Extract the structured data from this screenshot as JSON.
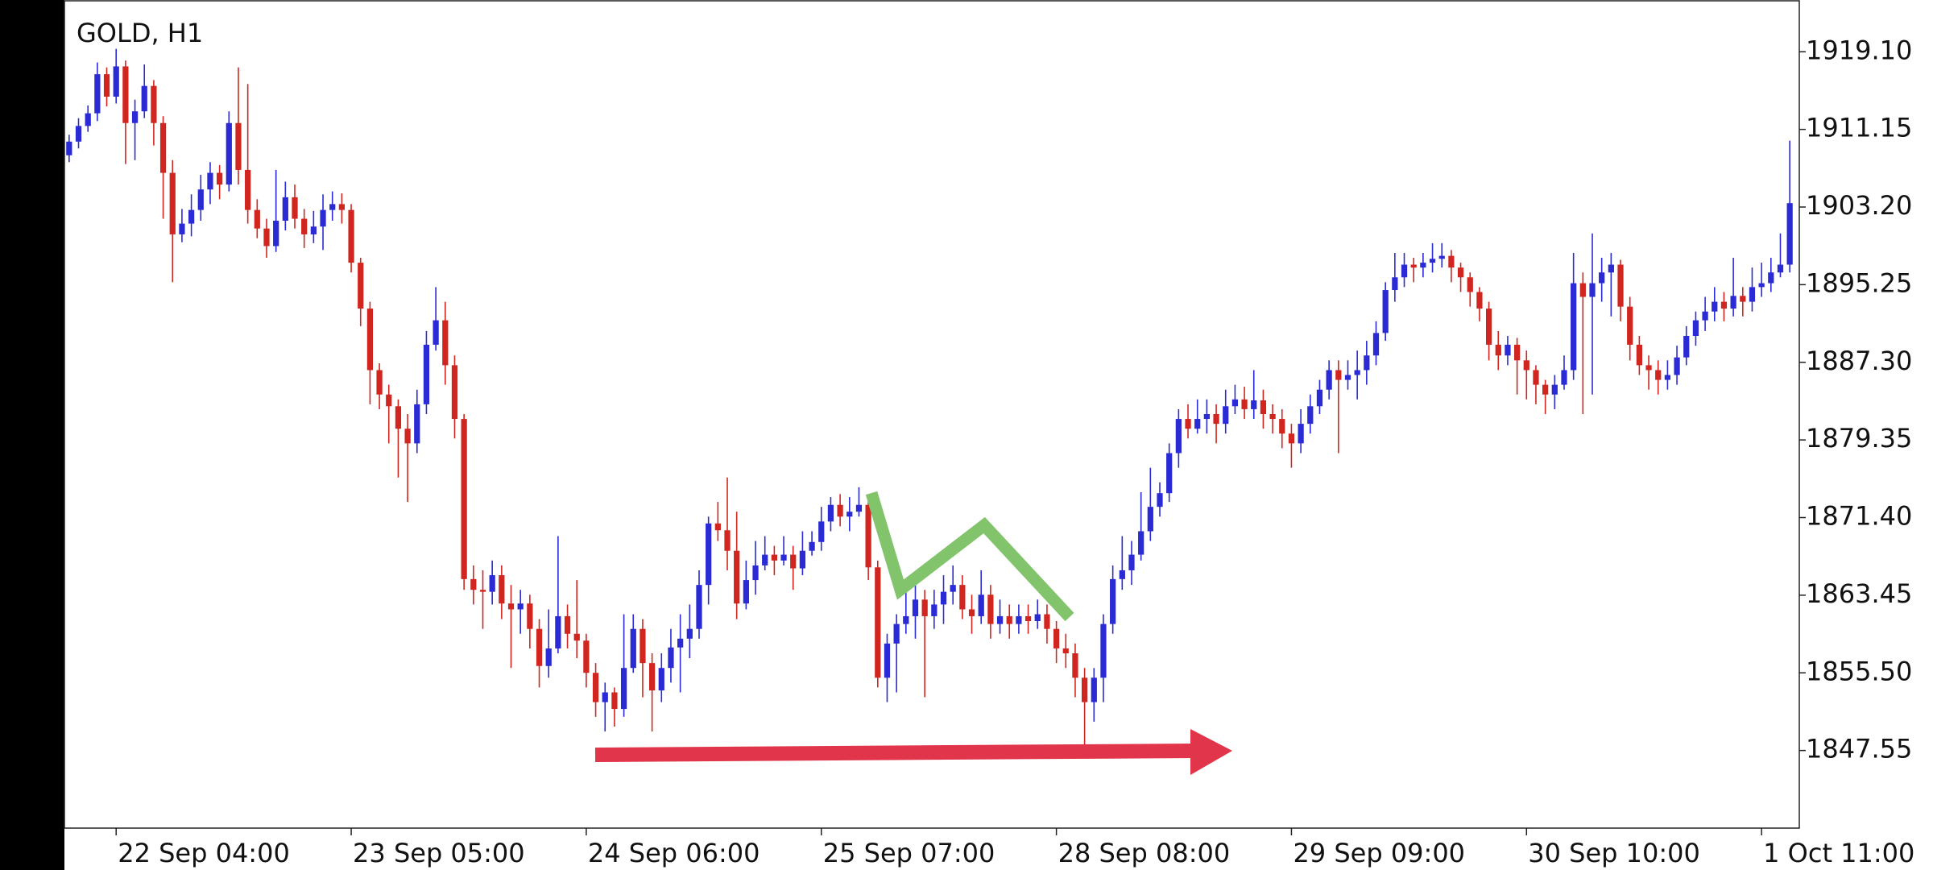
{
  "chart_data": {
    "type": "candlestick",
    "title": "GOLD, H1",
    "up_color": "#2b2bd6",
    "down_color": "#d1261f",
    "grid": false,
    "ylim": [
      1839.6,
      1924.4
    ],
    "yticks": [
      {
        "value": 1919.1,
        "label": "1919.10"
      },
      {
        "value": 1911.15,
        "label": "1911.15"
      },
      {
        "value": 1903.2,
        "label": "1903.20"
      },
      {
        "value": 1895.25,
        "label": "1895.25"
      },
      {
        "value": 1887.3,
        "label": "1887.30"
      },
      {
        "value": 1879.35,
        "label": "1879.35"
      },
      {
        "value": 1871.4,
        "label": "1871.40"
      },
      {
        "value": 1863.45,
        "label": "1863.45"
      },
      {
        "value": 1855.5,
        "label": "1855.50"
      },
      {
        "value": 1847.55,
        "label": "1847.55"
      }
    ],
    "categories": [
      null,
      null,
      null,
      null,
      null,
      "22 Sep 04:00",
      null,
      null,
      null,
      null,
      null,
      null,
      null,
      null,
      null,
      null,
      null,
      null,
      null,
      null,
      null,
      null,
      null,
      null,
      null,
      null,
      null,
      null,
      null,
      null,
      "23 Sep 05:00",
      null,
      null,
      null,
      null,
      null,
      null,
      null,
      null,
      null,
      null,
      null,
      null,
      null,
      null,
      null,
      null,
      null,
      null,
      null,
      null,
      null,
      null,
      null,
      null,
      "24 Sep 06:00",
      null,
      null,
      null,
      null,
      null,
      null,
      null,
      null,
      null,
      null,
      null,
      null,
      null,
      null,
      null,
      null,
      null,
      null,
      null,
      null,
      null,
      null,
      null,
      null,
      "25 Sep 07:00",
      null,
      null,
      null,
      null,
      null,
      null,
      null,
      null,
      null,
      null,
      null,
      null,
      null,
      null,
      null,
      null,
      null,
      null,
      null,
      null,
      null,
      null,
      null,
      null,
      "28 Sep 08:00",
      null,
      null,
      null,
      null,
      null,
      null,
      null,
      null,
      null,
      null,
      null,
      null,
      null,
      null,
      null,
      null,
      null,
      null,
      null,
      null,
      null,
      null,
      null,
      null,
      "29 Sep 09:00",
      null,
      null,
      null,
      null,
      null,
      null,
      null,
      null,
      null,
      null,
      null,
      null,
      null,
      null,
      null,
      null,
      null,
      null,
      null,
      null,
      null,
      null,
      null,
      null,
      "30 Sep 10:00",
      null,
      null,
      null,
      null,
      null,
      null,
      null,
      null,
      null,
      null,
      null,
      null,
      null,
      null,
      null,
      null,
      null,
      null,
      null,
      null,
      null,
      null,
      null,
      null,
      "1 Oct 11:00",
      null,
      null,
      null
    ],
    "open": [
      1908.5,
      1909.9,
      1911.5,
      1912.8,
      1916.8,
      1914.5,
      1917.6,
      1911.8,
      1913.0,
      1915.6,
      1911.8,
      1906.7,
      1900.4,
      1901.5,
      1902.9,
      1905.0,
      1906.7,
      1905.5,
      1911.8,
      1907.0,
      1902.9,
      1901.0,
      1899.2,
      1901.8,
      1904.2,
      1902.0,
      1900.4,
      1901.2,
      1902.9,
      1903.5,
      1902.9,
      1897.5,
      1892.8,
      1886.5,
      1884.0,
      1882.8,
      1880.5,
      1879.0,
      1883.0,
      1889.1,
      1891.6,
      1887.0,
      1881.5,
      1865.1,
      1864.0,
      1863.8,
      1865.5,
      1862.6,
      1862.0,
      1862.6,
      1860.0,
      1856.2,
      1858.0,
      1861.3,
      1859.5,
      1858.8,
      1855.5,
      1852.5,
      1853.5,
      1851.8,
      1856.0,
      1860.0,
      1856.5,
      1853.7,
      1856.0,
      1858.1,
      1859.0,
      1860.0,
      1864.5,
      1870.8,
      1870.1,
      1868.0,
      1862.6,
      1865.0,
      1866.5,
      1867.6,
      1867.0,
      1867.6,
      1866.2,
      1868.0,
      1868.9,
      1871.0,
      1872.7,
      1871.5,
      1872.0,
      1872.7,
      1866.3,
      1855.0,
      1858.5,
      1860.5,
      1861.3,
      1863.0,
      1861.3,
      1862.5,
      1863.8,
      1864.5,
      1862.0,
      1861.3,
      1863.5,
      1860.5,
      1861.3,
      1860.5,
      1861.3,
      1860.8,
      1861.5,
      1860.0,
      1858.0,
      1857.5,
      1855.0,
      1852.5,
      1855.0,
      1860.5,
      1865.1,
      1866.0,
      1867.6,
      1870.0,
      1872.5,
      1873.9,
      1878.0,
      1881.5,
      1880.5,
      1881.5,
      1882.0,
      1881.0,
      1882.8,
      1883.5,
      1882.5,
      1883.4,
      1882.0,
      1881.5,
      1880.0,
      1879.0,
      1881.0,
      1882.8,
      1884.5,
      1886.5,
      1885.5,
      1886.0,
      1886.5,
      1888.0,
      1890.3,
      1894.7,
      1896.0,
      1897.3,
      1897.0,
      1897.5,
      1897.9,
      1898.2,
      1897.0,
      1896.0,
      1894.5,
      1892.8,
      1889.1,
      1888.0,
      1889.1,
      1887.5,
      1886.5,
      1885.0,
      1884.0,
      1885.0,
      1886.5,
      1895.4,
      1894.0,
      1895.4,
      1896.5,
      1897.3,
      1893.0,
      1889.1,
      1887.0,
      1886.5,
      1885.5,
      1886.0,
      1887.8,
      1890.0,
      1891.6,
      1892.5,
      1893.5,
      1892.8,
      1894.1,
      1893.5,
      1895.0,
      1895.4,
      1896.5,
      1897.3
    ],
    "high": [
      1910.6,
      1912.3,
      1913.6,
      1918.0,
      1917.5,
      1919.4,
      1918.2,
      1914.2,
      1917.8,
      1916.2,
      1912.5,
      1908.0,
      1903.0,
      1904.5,
      1906.5,
      1907.8,
      1907.5,
      1913.0,
      1917.5,
      1915.8,
      1904.0,
      1902.0,
      1907.0,
      1905.8,
      1905.5,
      1903.0,
      1902.8,
      1904.5,
      1904.8,
      1904.6,
      1903.5,
      1898.0,
      1893.5,
      1887.2,
      1885.0,
      1883.5,
      1882.0,
      1884.5,
      1890.5,
      1895.0,
      1893.5,
      1888.0,
      1882.0,
      1866.5,
      1866.0,
      1867.0,
      1866.5,
      1864.5,
      1864.0,
      1863.5,
      1861.0,
      1862.0,
      1869.5,
      1862.5,
      1865.0,
      1859.5,
      1856.5,
      1854.5,
      1854.0,
      1861.5,
      1861.5,
      1861.0,
      1857.5,
      1857.5,
      1860.0,
      1861.5,
      1862.5,
      1866.0,
      1871.5,
      1873.0,
      1875.5,
      1872.0,
      1867.0,
      1869.0,
      1869.5,
      1868.5,
      1869.5,
      1868.5,
      1870.0,
      1870.0,
      1872.5,
      1873.5,
      1873.8,
      1873.5,
      1874.5,
      1873.5,
      1867.0,
      1859.5,
      1861.5,
      1865.0,
      1864.5,
      1864.0,
      1864.0,
      1865.5,
      1866.5,
      1865.5,
      1863.5,
      1866.0,
      1864.5,
      1863.0,
      1862.5,
      1862.5,
      1862.5,
      1863.0,
      1862.5,
      1860.8,
      1859.5,
      1858.5,
      1856.0,
      1856.0,
      1861.5,
      1866.5,
      1869.5,
      1869.0,
      1874.0,
      1876.5,
      1875.0,
      1879.0,
      1882.5,
      1883.0,
      1883.5,
      1883.5,
      1883.0,
      1884.5,
      1885.0,
      1884.8,
      1886.5,
      1884.5,
      1883.0,
      1882.5,
      1881.0,
      1882.5,
      1884.0,
      1885.5,
      1887.5,
      1887.5,
      1887.5,
      1888.5,
      1889.5,
      1891.5,
      1895.5,
      1898.5,
      1898.5,
      1898.0,
      1898.5,
      1899.5,
      1899.5,
      1898.8,
      1897.5,
      1896.5,
      1895.0,
      1893.5,
      1890.5,
      1890.0,
      1889.8,
      1888.5,
      1887.0,
      1885.5,
      1886.0,
      1888.0,
      1898.5,
      1896.5,
      1900.5,
      1898.0,
      1898.5,
      1897.8,
      1894.0,
      1890.0,
      1888.0,
      1887.5,
      1887.5,
      1889.0,
      1891.0,
      1892.5,
      1894.0,
      1895.0,
      1894.5,
      1898.0,
      1895.0,
      1897.0,
      1897.5,
      1898.0,
      1900.5,
      1910.0
    ],
    "low": [
      1907.8,
      1909.2,
      1910.9,
      1912.0,
      1913.5,
      1913.8,
      1907.6,
      1908.0,
      1912.3,
      1909.5,
      1902.0,
      1895.5,
      1899.6,
      1900.2,
      1901.8,
      1903.5,
      1904.0,
      1904.8,
      1905.5,
      1901.5,
      1900.0,
      1898.0,
      1898.6,
      1900.8,
      1901.0,
      1899.0,
      1899.5,
      1898.8,
      1901.8,
      1901.5,
      1896.5,
      1891.0,
      1883.0,
      1882.5,
      1879.0,
      1875.5,
      1873.0,
      1878.0,
      1882.0,
      1888.5,
      1885.0,
      1879.5,
      1864.0,
      1862.5,
      1860.0,
      1862.5,
      1861.0,
      1856.0,
      1859.5,
      1858.0,
      1854.0,
      1855.0,
      1857.5,
      1858.0,
      1857.0,
      1854.0,
      1851.0,
      1849.5,
      1850.0,
      1851.0,
      1855.5,
      1853.0,
      1849.5,
      1852.5,
      1854.5,
      1853.5,
      1857.0,
      1859.0,
      1862.5,
      1869.0,
      1866.0,
      1861.0,
      1862.0,
      1863.5,
      1866.0,
      1865.5,
      1866.5,
      1864.0,
      1865.5,
      1867.5,
      1868.0,
      1870.0,
      1870.5,
      1870.0,
      1871.5,
      1865.0,
      1854.0,
      1852.5,
      1853.5,
      1859.5,
      1859.0,
      1853.0,
      1860.0,
      1860.5,
      1862.5,
      1861.0,
      1859.5,
      1860.5,
      1859.0,
      1859.5,
      1859.0,
      1859.5,
      1859.5,
      1860.0,
      1858.5,
      1856.5,
      1856.0,
      1853.0,
      1848.0,
      1850.5,
      1852.5,
      1859.5,
      1864.0,
      1864.5,
      1867.0,
      1869.0,
      1871.5,
      1873.0,
      1876.5,
      1879.5,
      1880.0,
      1880.0,
      1879.0,
      1880.0,
      1882.0,
      1881.5,
      1881.5,
      1880.5,
      1880.0,
      1878.5,
      1876.5,
      1878.0,
      1880.0,
      1882.0,
      1883.5,
      1878.0,
      1884.5,
      1883.5,
      1885.0,
      1887.0,
      1889.5,
      1893.5,
      1895.0,
      1895.5,
      1896.0,
      1896.5,
      1897.0,
      1895.5,
      1894.5,
      1893.0,
      1891.5,
      1887.5,
      1886.5,
      1887.0,
      1884.0,
      1883.5,
      1883.0,
      1882.0,
      1882.5,
      1884.5,
      1885.5,
      1882.0,
      1884.0,
      1893.5,
      1892.0,
      1891.5,
      1887.5,
      1886.0,
      1884.5,
      1884.0,
      1884.5,
      1885.0,
      1887.0,
      1889.0,
      1890.5,
      1891.5,
      1891.5,
      1892.0,
      1892.0,
      1892.5,
      1894.0,
      1894.5,
      1896.0,
      1896.5
    ],
    "close": [
      1909.9,
      1911.5,
      1912.8,
      1916.8,
      1914.5,
      1917.6,
      1911.8,
      1913.0,
      1915.6,
      1911.8,
      1906.7,
      1900.4,
      1901.5,
      1902.9,
      1905.0,
      1906.7,
      1905.5,
      1911.8,
      1907.0,
      1902.9,
      1901.0,
      1899.2,
      1901.8,
      1904.2,
      1902.0,
      1900.4,
      1901.2,
      1902.9,
      1903.5,
      1902.9,
      1897.5,
      1892.8,
      1886.5,
      1884.0,
      1882.8,
      1880.5,
      1879.0,
      1883.0,
      1889.1,
      1891.6,
      1887.0,
      1881.5,
      1865.1,
      1864.0,
      1863.8,
      1865.5,
      1862.6,
      1862.0,
      1862.6,
      1860.0,
      1856.2,
      1858.0,
      1861.3,
      1859.5,
      1858.8,
      1855.5,
      1852.5,
      1853.5,
      1851.8,
      1856.0,
      1860.0,
      1856.5,
      1853.7,
      1856.0,
      1858.1,
      1859.0,
      1860.0,
      1864.5,
      1870.8,
      1870.1,
      1868.0,
      1862.6,
      1865.0,
      1866.5,
      1867.6,
      1867.0,
      1867.6,
      1866.2,
      1868.0,
      1868.9,
      1871.0,
      1872.7,
      1871.5,
      1872.0,
      1872.7,
      1866.3,
      1855.0,
      1858.5,
      1860.5,
      1861.3,
      1863.0,
      1861.3,
      1862.5,
      1863.8,
      1864.5,
      1862.0,
      1861.3,
      1863.5,
      1860.5,
      1861.3,
      1860.5,
      1861.3,
      1860.8,
      1861.5,
      1860.0,
      1858.0,
      1857.5,
      1855.0,
      1852.5,
      1855.0,
      1860.5,
      1865.1,
      1866.0,
      1867.6,
      1870.0,
      1872.5,
      1873.9,
      1878.0,
      1881.5,
      1880.5,
      1881.5,
      1882.0,
      1881.0,
      1882.8,
      1883.5,
      1882.5,
      1883.4,
      1882.0,
      1881.5,
      1880.0,
      1879.0,
      1881.0,
      1882.8,
      1884.5,
      1886.5,
      1885.5,
      1886.0,
      1886.5,
      1888.0,
      1890.3,
      1894.7,
      1896.0,
      1897.3,
      1897.0,
      1897.5,
      1897.9,
      1898.2,
      1897.0,
      1896.0,
      1894.5,
      1892.8,
      1889.1,
      1888.0,
      1889.1,
      1887.5,
      1886.5,
      1885.0,
      1884.0,
      1885.0,
      1886.5,
      1895.4,
      1894.0,
      1895.4,
      1896.5,
      1897.3,
      1893.0,
      1889.1,
      1887.0,
      1886.5,
      1885.5,
      1886.0,
      1887.8,
      1890.0,
      1891.6,
      1892.5,
      1893.5,
      1892.8,
      1894.1,
      1893.5,
      1895.0,
      1895.4,
      1896.5,
      1897.3,
      1903.6
    ]
  }
}
